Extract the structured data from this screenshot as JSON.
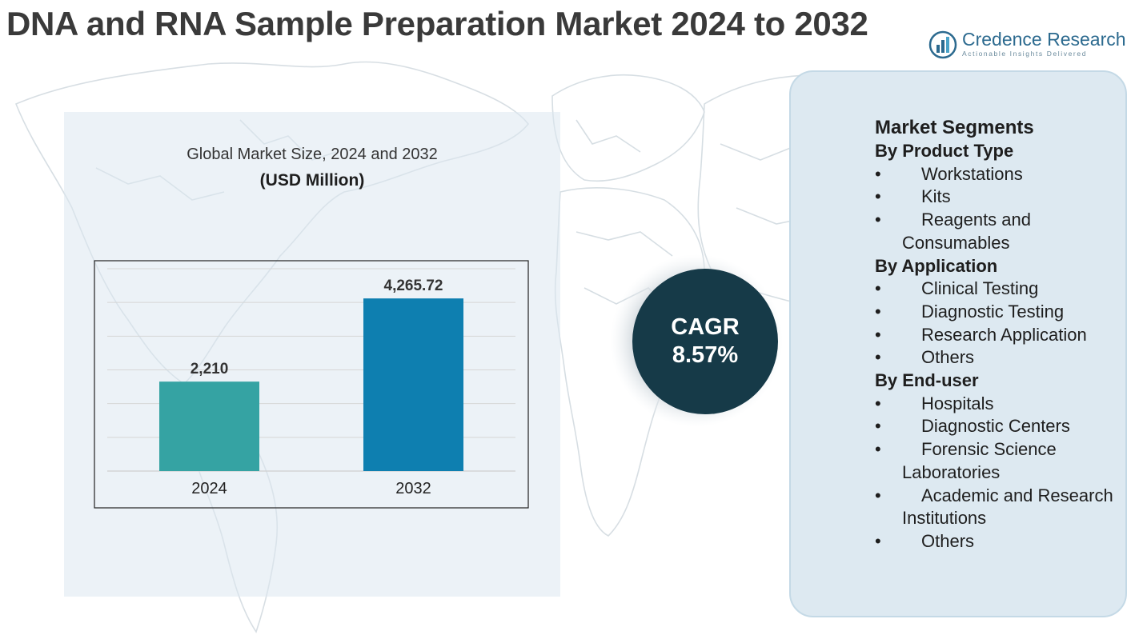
{
  "title": "DNA and RNA Sample Preparation Market 2024 to 2032",
  "logo": {
    "name": "Credence Research",
    "tagline": "Actionable Insights Delivered",
    "icon": "bar-chart-logo-icon"
  },
  "chart_data": {
    "type": "bar",
    "title": "Global Market Size, 2024 and 2032",
    "unit_label": "(USD Million)",
    "categories": [
      "2024",
      "2032"
    ],
    "values": [
      2210,
      4265.72
    ],
    "value_labels": [
      "2,210",
      "4,265.72"
    ],
    "colors": [
      "#35a3a3",
      "#0e7fb0"
    ],
    "ylim": [
      0,
      5000
    ],
    "grid": true,
    "legend": "none"
  },
  "cagr": {
    "label": "CAGR",
    "value": "8.57%"
  },
  "segments": {
    "heading": "Market Segments",
    "groups": [
      {
        "title": "By Product Type",
        "items": [
          "Workstations",
          "Kits",
          "Reagents and Consumables"
        ]
      },
      {
        "title": "By Application",
        "items": [
          "Clinical Testing",
          "Diagnostic Testing",
          "Research Application",
          "Others"
        ]
      },
      {
        "title": "By End-user",
        "items": [
          "Hospitals",
          "Diagnostic Centers",
          "Forensic Science Laboratories",
          "Academic and Research Institutions",
          "Others"
        ]
      }
    ]
  },
  "colors": {
    "title": "#3a3a3a",
    "cagr_circle": "#163a48",
    "panel": "#dde9f1",
    "brand": "#2c6a8f"
  }
}
